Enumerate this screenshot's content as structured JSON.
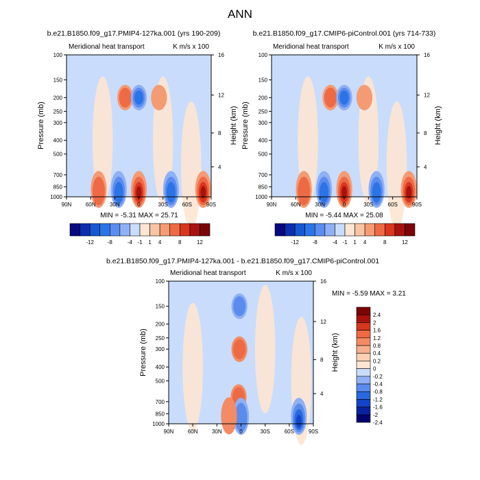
{
  "figure_title": "ANN",
  "palette": {
    "full": [
      "#08087f",
      "#0b2faf",
      "#1658d2",
      "#2b74e6",
      "#5b8cf0",
      "#8fb0f5",
      "#c9dcfb",
      "#fde5d3",
      "#f8c4a3",
      "#f59b74",
      "#ee6a45",
      "#d9361f",
      "#a8120e",
      "#7a0506"
    ],
    "diff": [
      "#03036e",
      "#0a22a0",
      "#1544c8",
      "#2968df",
      "#5b8ced",
      "#8fb0f5",
      "#c9dcfb",
      "#fde5d3",
      "#fbd0b5",
      "#f7b08d",
      "#f38c64",
      "#ee6a45",
      "#d9361f",
      "#a8120e",
      "#7a0506"
    ]
  },
  "chart_data": [
    {
      "type": "heatmap",
      "title": "b.e21.B1850.f09_g17.PMIP4-127ka.001 (yrs 190-209)",
      "left_string": "Meridional heat transport",
      "right_string": "K m/s x 100",
      "ylabel": "Pressure (mb)",
      "ylabel_right": "Height (km)",
      "x_ticks": [
        "90N",
        "60N",
        "30N",
        "0",
        "30S",
        "60S",
        "90S"
      ],
      "y_ticks": [
        "100",
        "150",
        "200",
        "250",
        "300",
        "400",
        "500",
        "700",
        "850",
        "1000"
      ],
      "height_ticks": [
        "16",
        "12",
        "8",
        "4"
      ],
      "xlim": [
        90,
        -90
      ],
      "ylim": [
        1000,
        100
      ],
      "y_scale": "log",
      "stats": "MIN =  -5.31  MAX =  25.71",
      "colorbar": {
        "orientation": "horizontal",
        "labels": [
          "-12",
          "-8",
          "-4",
          "-1",
          "1",
          "4",
          "8",
          "12"
        ]
      },
      "features": [
        {
          "kind": "positive",
          "lat": 17,
          "p": 200,
          "amp": 0.55
        },
        {
          "kind": "negative",
          "lat": 0,
          "p": 200,
          "amp": 0.7
        },
        {
          "kind": "positive",
          "lat": -25,
          "p": 200,
          "amp": 0.35
        },
        {
          "kind": "negative",
          "lat": 25,
          "p": 930,
          "amp": 0.8
        },
        {
          "kind": "positive",
          "lat": 0,
          "p": 930,
          "amp": 0.9
        },
        {
          "kind": "negative",
          "lat": -40,
          "p": 930,
          "amp": 0.7
        },
        {
          "kind": "positive",
          "lat": 50,
          "p": 930,
          "amp": 0.45
        },
        {
          "kind": "positive",
          "lat": -80,
          "p": 930,
          "amp": 0.9
        }
      ]
    },
    {
      "type": "heatmap",
      "title": "b.e21.B1850.f09_g17.CMIP6-piControl.001 (yrs 714-733)",
      "left_string": "Meridional heat transport",
      "right_string": "K m/s x 100",
      "ylabel": "Pressure (mb)",
      "ylabel_right": "Height (km)",
      "x_ticks": [
        "90N",
        "60N",
        "30N",
        "0",
        "30S",
        "60S",
        "90S"
      ],
      "y_ticks": [
        "100",
        "150",
        "200",
        "250",
        "300",
        "400",
        "500",
        "700",
        "850",
        "1000"
      ],
      "height_ticks": [
        "16",
        "12",
        "8",
        "4"
      ],
      "xlim": [
        90,
        -90
      ],
      "ylim": [
        1000,
        100
      ],
      "y_scale": "log",
      "stats": "MIN =  -5.44  MAX =  25.08",
      "colorbar": {
        "orientation": "horizontal",
        "labels": [
          "-12",
          "-8",
          "-4",
          "-1",
          "1",
          "4",
          "8",
          "12"
        ]
      },
      "features": [
        {
          "kind": "positive",
          "lat": 17,
          "p": 200,
          "amp": 0.55
        },
        {
          "kind": "negative",
          "lat": 0,
          "p": 200,
          "amp": 0.65
        },
        {
          "kind": "positive",
          "lat": -25,
          "p": 200,
          "amp": 0.3
        },
        {
          "kind": "negative",
          "lat": 25,
          "p": 930,
          "amp": 0.8
        },
        {
          "kind": "positive",
          "lat": 0,
          "p": 930,
          "amp": 0.9
        },
        {
          "kind": "negative",
          "lat": -40,
          "p": 930,
          "amp": 0.7
        },
        {
          "kind": "positive",
          "lat": 50,
          "p": 930,
          "amp": 0.45
        },
        {
          "kind": "positive",
          "lat": -80,
          "p": 930,
          "amp": 0.9
        }
      ]
    },
    {
      "type": "heatmap",
      "title": "b.e21.B1850.f09_g17.PMIP4-127ka.001 - b.e21.B1850.f09_g17.CMIP6-piControl.001",
      "left_string": "Meridional heat transport",
      "right_string": "K m/s x 100",
      "ylabel": "Pressure (mb)",
      "ylabel_right": "Height (km)",
      "x_ticks": [
        "90N",
        "60N",
        "30N",
        "0",
        "30S",
        "60S",
        "90S"
      ],
      "y_ticks": [
        "100",
        "150",
        "200",
        "250",
        "300",
        "400",
        "500",
        "700",
        "850",
        "1000"
      ],
      "height_ticks": [
        "16",
        "12",
        "8",
        "4"
      ],
      "xlim": [
        90,
        -90
      ],
      "ylim": [
        1000,
        100
      ],
      "y_scale": "log",
      "stats": "MIN =  -5.59  MAX =   3.21",
      "colorbar": {
        "orientation": "vertical",
        "labels": [
          "2.4",
          "2",
          "1.6",
          "1.2",
          "0.8",
          "0.4",
          "0.2",
          "0",
          "-0.2",
          "-0.4",
          "-0.8",
          "-1.2",
          "-1.6",
          "-2",
          "-2.4"
        ]
      },
      "features": [
        {
          "kind": "negative",
          "lat": 2,
          "p": 150,
          "amp": 0.6
        },
        {
          "kind": "positive",
          "lat": 2,
          "p": 300,
          "amp": 0.55
        },
        {
          "kind": "positive",
          "lat": 3,
          "p": 650,
          "amp": 0.4
        },
        {
          "kind": "negative",
          "lat": 0,
          "p": 900,
          "amp": 0.55
        },
        {
          "kind": "positive",
          "lat": 15,
          "p": 880,
          "amp": 0.35
        },
        {
          "kind": "negative",
          "lat": -72,
          "p": 990,
          "amp": 0.95
        }
      ]
    }
  ]
}
